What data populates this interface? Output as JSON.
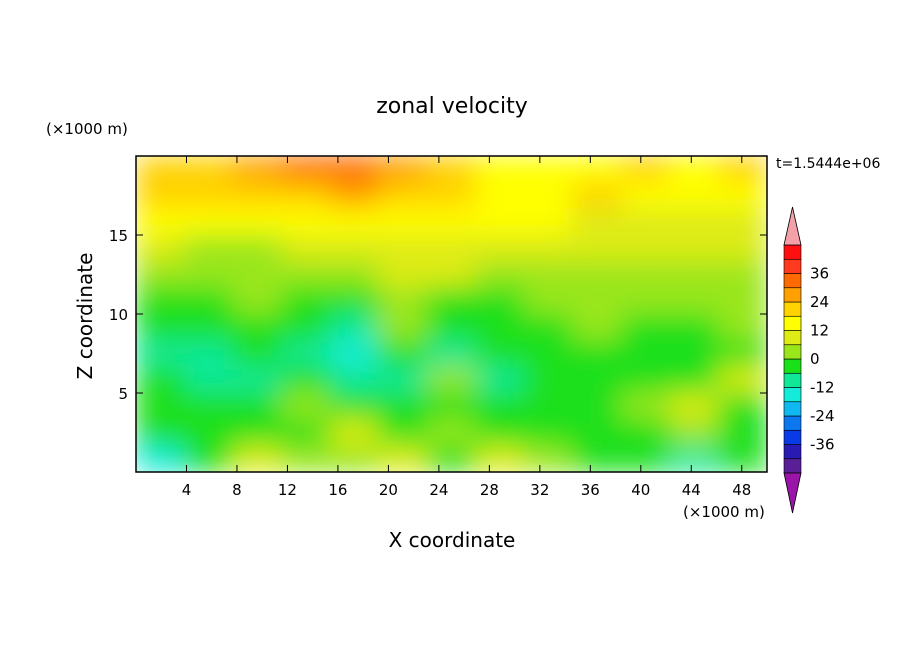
{
  "chart_data": {
    "type": "heatmap",
    "title": "zonal velocity",
    "xlabel": "X coordinate",
    "ylabel": "Z coordinate",
    "x_unit": "(×1000 m)",
    "y_unit": "(×1000 m)",
    "time_label": "t=1.5444e+06",
    "xlim": [
      0,
      50
    ],
    "ylim": [
      0,
      20
    ],
    "x_ticks": [
      4,
      8,
      12,
      16,
      20,
      24,
      28,
      32,
      36,
      40,
      44,
      48
    ],
    "y_ticks": [
      5,
      10,
      15
    ],
    "colorbar": {
      "levels": [
        -42,
        -36,
        -30,
        -24,
        -18,
        -12,
        -6,
        0,
        6,
        12,
        18,
        24,
        30,
        36,
        42
      ],
      "tick_labels": [
        "36",
        "24",
        "12",
        "0",
        "-12",
        "-24",
        "-36"
      ],
      "tick_values": [
        36,
        24,
        12,
        0,
        -12,
        -24,
        -36
      ],
      "colors": [
        "#5a1f96",
        "#2a1ab4",
        "#0a3ae6",
        "#0c78f0",
        "#10b8f0",
        "#12ecd8",
        "#10e898",
        "#1ae01a",
        "#9ae61a",
        "#deeb14",
        "#ffff00",
        "#ffd200",
        "#ffa000",
        "#ff6a00",
        "#ff3a1e",
        "#ff1010"
      ],
      "under_color": "#9a14aa",
      "over_color": "#f4a0a8"
    },
    "z_values_m_per_s": [
      [
        22,
        22,
        25,
        30,
        32,
        28,
        22,
        16,
        14,
        16,
        18,
        16,
        18
      ],
      [
        18,
        18,
        20,
        22,
        24,
        20,
        18,
        16,
        16,
        18,
        16,
        14,
        16
      ],
      [
        12,
        12,
        14,
        14,
        12,
        12,
        14,
        16,
        14,
        10,
        10,
        8,
        10
      ],
      [
        6,
        4,
        2,
        6,
        6,
        8,
        10,
        10,
        8,
        8,
        6,
        6,
        8
      ],
      [
        0,
        2,
        4,
        0,
        2,
        6,
        6,
        4,
        4,
        4,
        2,
        4,
        4
      ],
      [
        -4,
        -2,
        0,
        -4,
        -6,
        0,
        -2,
        -2,
        2,
        2,
        0,
        0,
        0
      ],
      [
        -6,
        -6,
        -4,
        -2,
        -8,
        0,
        -6,
        -4,
        -2,
        0,
        -2,
        -4,
        2
      ],
      [
        -8,
        -8,
        -6,
        -8,
        -14,
        -6,
        -8,
        -6,
        -4,
        -2,
        -4,
        -6,
        -2
      ],
      [
        -4,
        -12,
        -8,
        -6,
        -8,
        -8,
        0,
        -8,
        -4,
        -4,
        -2,
        -4,
        6
      ],
      [
        -6,
        -4,
        -6,
        0,
        -4,
        -2,
        -2,
        -4,
        -4,
        -6,
        2,
        6,
        -4
      ],
      [
        -6,
        -6,
        -2,
        -6,
        8,
        -4,
        2,
        -6,
        -6,
        -4,
        -6,
        2,
        -6
      ],
      [
        -16,
        -4,
        8,
        2,
        4,
        10,
        -6,
        10,
        0,
        -6,
        -4,
        -8,
        -6
      ]
    ]
  }
}
